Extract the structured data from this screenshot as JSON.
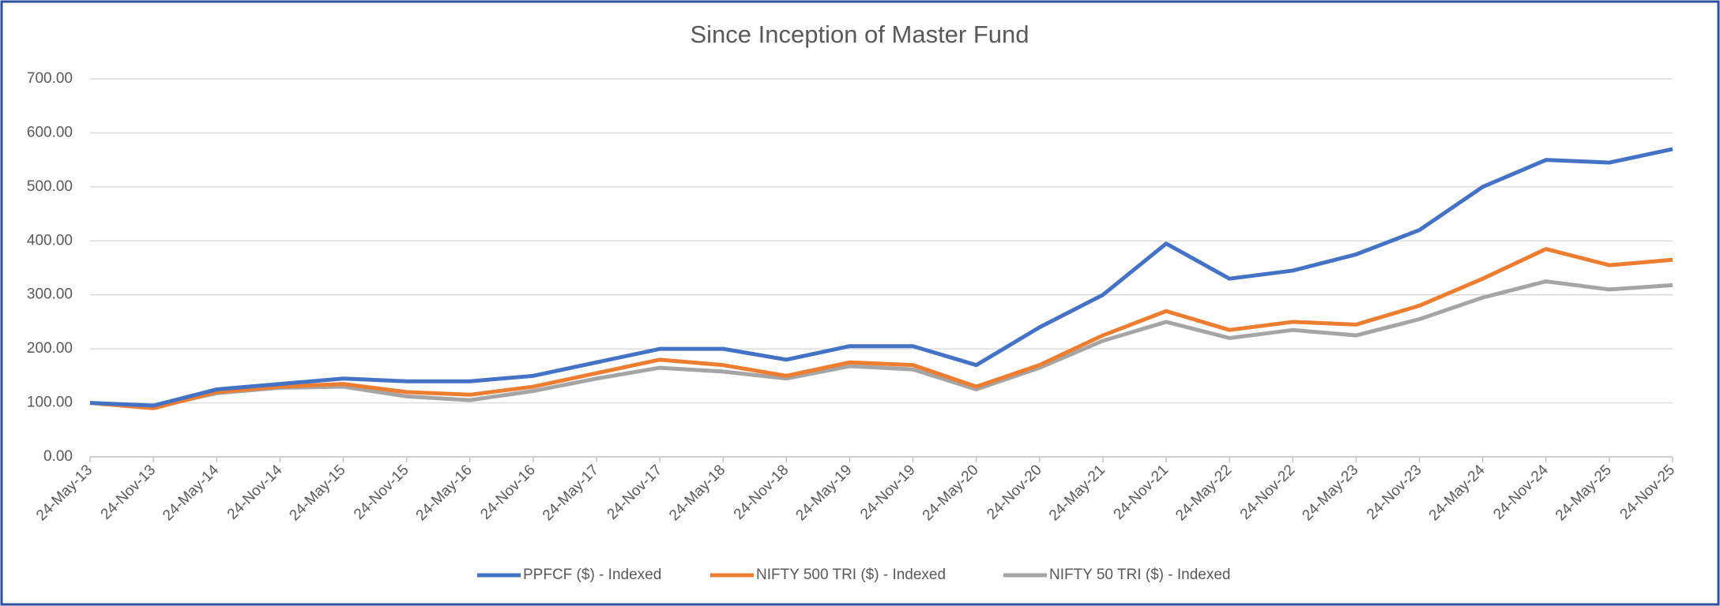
{
  "chart_data": {
    "type": "line",
    "title": "Since Inception of Master Fund",
    "categories": [
      "24-May-13",
      "24-Nov-13",
      "24-May-14",
      "24-Nov-14",
      "24-May-15",
      "24-Nov-15",
      "24-May-16",
      "24-Nov-16",
      "24-May-17",
      "24-Nov-17",
      "24-May-18",
      "24-Nov-18",
      "24-May-19",
      "24-Nov-19",
      "24-May-20",
      "24-Nov-20",
      "24-May-21",
      "24-Nov-21",
      "24-May-22",
      "24-Nov-22",
      "24-May-23",
      "24-Nov-23",
      "24-May-24",
      "24-Nov-24",
      "24-May-25",
      "24-Nov-25"
    ],
    "series": [
      {
        "name": "PPFCF ($) - Indexed",
        "color": "#4472c4",
        "values": [
          100,
          95,
          125,
          135,
          145,
          140,
          140,
          150,
          175,
          200,
          200,
          180,
          205,
          205,
          170,
          240,
          300,
          395,
          330,
          345,
          375,
          420,
          500,
          550,
          545,
          570
        ]
      },
      {
        "name": "NIFTY 500 TRI ($) - Indexed",
        "color": "#ed7d31",
        "values": [
          100,
          90,
          120,
          130,
          135,
          120,
          115,
          130,
          155,
          180,
          170,
          150,
          175,
          170,
          130,
          170,
          225,
          270,
          235,
          250,
          245,
          280,
          330,
          385,
          355,
          365
        ]
      },
      {
        "name": "NIFTY 50 TRI ($) - Indexed",
        "color": "#a5a5a5",
        "values": [
          100,
          92,
          118,
          128,
          130,
          112,
          105,
          122,
          145,
          165,
          158,
          145,
          168,
          162,
          125,
          165,
          215,
          250,
          220,
          235,
          225,
          255,
          295,
          325,
          310,
          318
        ]
      }
    ],
    "ylim": [
      0,
      700
    ],
    "yticks": [
      {
        "value": 0,
        "label": "0.00"
      },
      {
        "value": 100,
        "label": "100.00"
      },
      {
        "value": 200,
        "label": "200.00"
      },
      {
        "value": 300,
        "label": "300.00"
      },
      {
        "value": 400,
        "label": "400.00"
      },
      {
        "value": 500,
        "label": "500.00"
      },
      {
        "value": 600,
        "label": "600.00"
      },
      {
        "value": 700,
        "label": "700.00"
      }
    ],
    "grid": true,
    "legend": "bottom"
  }
}
